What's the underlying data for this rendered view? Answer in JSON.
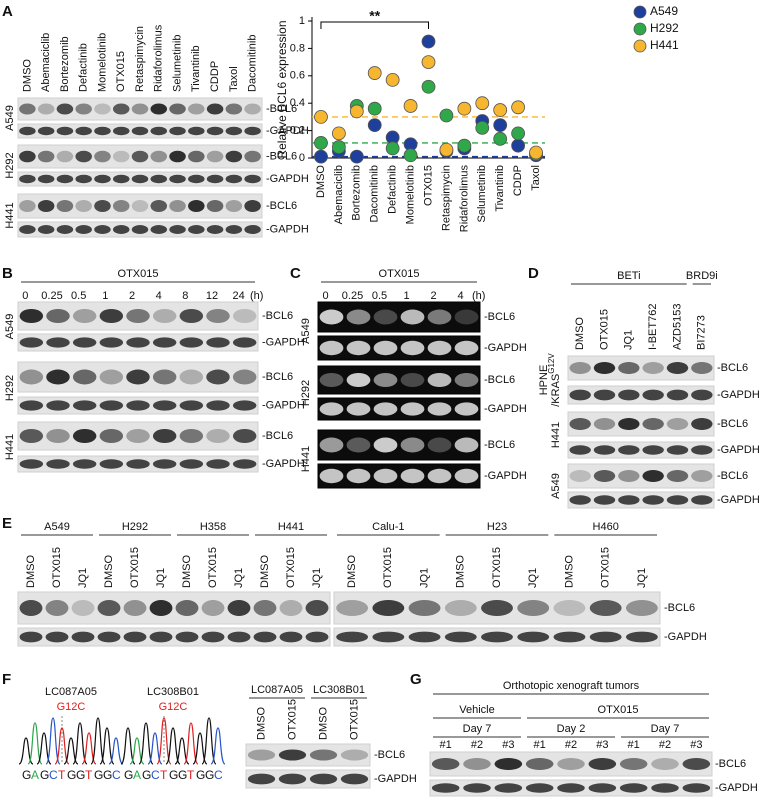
{
  "panel_a": {
    "label": "A",
    "lanes": [
      "DMSO",
      "Abemaciclib",
      "Bortezomib",
      "Defactinib",
      "Momelotinib",
      "OTX015",
      "Retaspimycin",
      "Ridaforolimus",
      "Selumetinib",
      "Tivantinib",
      "CDDP",
      "Taxol",
      "Dacomitinib"
    ],
    "rows": [
      {
        "cell_line": "A549",
        "markers": [
          "-BCL6",
          "-GAPDH"
        ]
      },
      {
        "cell_line": "H292",
        "markers": [
          "-BCL6",
          "-GAPDH"
        ]
      },
      {
        "cell_line": "H441",
        "markers": [
          "-BCL6",
          "-GAPDH"
        ]
      }
    ]
  },
  "chart_data": {
    "type": "dot",
    "y_label": "Relative BCL6 expression",
    "annotation": "**",
    "categories": [
      "DMSO",
      "Abemaciclib",
      "Bortezomib",
      "Dacomitinib",
      "Defactinib",
      "Momelotinib",
      "OTX015",
      "Retaspimycin",
      "Ridaforolimus",
      "Selumetinib",
      "Tivantinib",
      "CDDP",
      "Taxol"
    ],
    "series": [
      {
        "name": "A549",
        "color": "#1f3f9c",
        "values": [
          0.01,
          0.05,
          0.01,
          0.24,
          0.15,
          0.1,
          0.85,
          0.05,
          0.07,
          0.27,
          0.24,
          0.09,
          0.02
        ]
      },
      {
        "name": "H292",
        "color": "#2fa84a",
        "values": [
          0.11,
          0.08,
          0.38,
          0.36,
          0.07,
          0.02,
          0.52,
          0.31,
          0.09,
          0.22,
          0.14,
          0.18,
          0.03
        ]
      },
      {
        "name": "H441",
        "color": "#f6b630",
        "values": [
          0.3,
          0.18,
          0.34,
          0.62,
          0.57,
          0.38,
          0.7,
          0.06,
          0.36,
          0.4,
          0.35,
          0.37,
          0.04
        ]
      }
    ],
    "ylim": [
      0,
      1
    ],
    "yticks": [
      0,
      0.2,
      0.4,
      0.6,
      0.8,
      1
    ]
  },
  "panel_b": {
    "label": "B",
    "treatment": "OTX015",
    "lanes": [
      "0",
      "0.25",
      "0.5",
      "1",
      "2",
      "4",
      "8",
      "12",
      "24"
    ],
    "unit": "(h)",
    "rows": [
      {
        "cell_line": "A549",
        "markers": [
          "-BCL6",
          "-GAPDH"
        ]
      },
      {
        "cell_line": "H292",
        "markers": [
          "-BCL6",
          "-GAPDH"
        ]
      },
      {
        "cell_line": "H441",
        "markers": [
          "-BCL6",
          "-GAPDH"
        ]
      }
    ]
  },
  "panel_c": {
    "label": "C",
    "treatment": "OTX015",
    "lanes": [
      "0",
      "0.25",
      "0.5",
      "1",
      "2",
      "4"
    ],
    "unit": "(h)",
    "rows": [
      {
        "cell_line": "A549",
        "markers": [
          "-BCL6",
          "-GAPDH"
        ]
      },
      {
        "cell_line": "H292",
        "markers": [
          "-BCL6",
          "-GAPDH"
        ]
      },
      {
        "cell_line": "H441",
        "markers": [
          "-BCL6",
          "-GAPDH"
        ]
      }
    ]
  },
  "panel_d": {
    "label": "D",
    "groups": [
      "BETi",
      "BRD9i"
    ],
    "lanes": [
      "DMSO",
      "OTX015",
      "JQ1",
      "I-BET762",
      "AZD5153",
      "BI7273"
    ],
    "rows": [
      {
        "cell_line": "HPNE",
        "cell_line_line2": "/KRAS",
        "superscript": "G12V",
        "markers": [
          "-BCL6",
          "-GAPDH"
        ]
      },
      {
        "cell_line": "H441",
        "markers": [
          "-BCL6",
          "-GAPDH"
        ]
      },
      {
        "cell_line": "A549",
        "markers": [
          "-BCL6",
          "-GAPDH"
        ]
      }
    ]
  },
  "panel_e": {
    "label": "E",
    "groups": [
      "A549",
      "H292",
      "H358",
      "H441",
      "Calu-1",
      "H23",
      "H460"
    ],
    "lanes": [
      "DMSO",
      "OTX015",
      "JQ1",
      "DMSO",
      "OTX015",
      "JQ1",
      "DMSO",
      "OTX015",
      "JQ1",
      "DMSO",
      "OTX015",
      "JQ1",
      "DMSO",
      "OTX015",
      "JQ1",
      "DMSO",
      "OTX015",
      "JQ1",
      "DMSO",
      "OTX015",
      "JQ1"
    ],
    "rows": [
      {
        "markers": [
          "-BCL6",
          "-GAPDH"
        ]
      }
    ]
  },
  "panel_f": {
    "label": "F",
    "samples": [
      {
        "name": "LC087A05",
        "mutation": "G12C",
        "sequence": "GAGCTGGTGGC"
      },
      {
        "name": "LC308B01",
        "mutation": "G12C",
        "sequence": "GAGCTGGTGGC"
      }
    ],
    "groups": [
      "LC087A05",
      "LC308B01"
    ],
    "lanes": [
      "DMSO",
      "OTX015",
      "DMSO",
      "OTX015"
    ],
    "rows": [
      {
        "markers": [
          "-BCL6",
          "-GAPDH"
        ]
      }
    ]
  },
  "panel_g": {
    "label": "G",
    "title": "Orthotopic xenograft tumors",
    "groups": [
      "Vehicle",
      "OTX015"
    ],
    "subgroups": [
      "Day 7",
      "Day 2",
      "Day 7"
    ],
    "lanes": [
      "#1",
      "#2",
      "#3",
      "#1",
      "#2",
      "#3",
      "#1",
      "#2",
      "#3"
    ],
    "rows": [
      {
        "markers": [
          "-BCL6",
          "-GAPDH"
        ]
      }
    ]
  }
}
